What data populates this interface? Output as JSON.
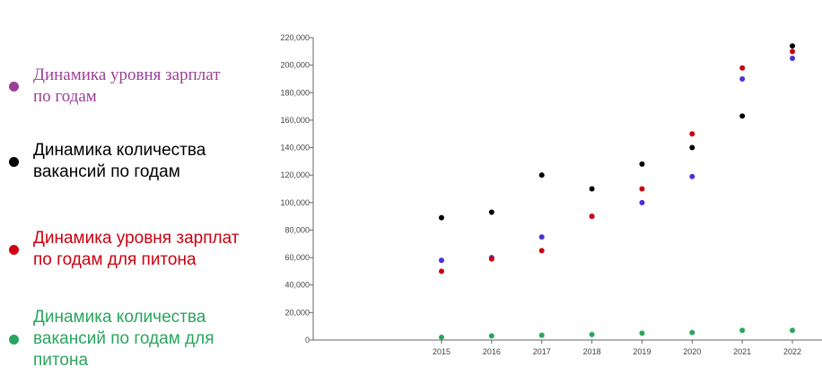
{
  "legend": [
    {
      "label": "Динамика уровня зарплат\nпо годам",
      "color": "#9b3f96",
      "font": "serif"
    },
    {
      "label": "Динамика количества\nвакансий по годам",
      "color": "#000000",
      "font": "sans"
    },
    {
      "label": "Динамика уровня зарплат\nпо годам для питона",
      "color": "#cc0010",
      "font": "sans"
    },
    {
      "label": "Динамика количества\nвакансий по годам для\nпитона",
      "color": "#2aa55d",
      "font": "sans"
    }
  ],
  "chart_data": {
    "type": "scatter",
    "title": "",
    "xlabel": "",
    "ylabel": "",
    "categories": [
      "2015",
      "2016",
      "2017",
      "2018",
      "2019",
      "2020",
      "2021",
      "2022"
    ],
    "ylim": [
      0,
      220000
    ],
    "yticks": [
      "0",
      "20,000",
      "40,000",
      "60,000",
      "80,000",
      "100,000",
      "120,000",
      "140,000",
      "160,000",
      "180,000",
      "200,000",
      "220,000"
    ],
    "grid": false,
    "series": [
      {
        "name": "Динамика количества вакансий по годам",
        "color": "#000000",
        "values": [
          89000,
          93000,
          120000,
          110000,
          128000,
          140000,
          163000,
          214000
        ]
      },
      {
        "color": "#4a32d6",
        "values": [
          58000,
          60000,
          75000,
          90000,
          100000,
          119000,
          190000,
          205000
        ]
      },
      {
        "name": "Динамика уровня зарплат по годам для питона",
        "color": "#cc0010",
        "values": [
          50000,
          59000,
          65000,
          90000,
          110000,
          150000,
          198000,
          210000
        ]
      },
      {
        "name": "Динамика количества вакансий по годам для питона",
        "color": "#2aa55d",
        "values": [
          2000,
          3000,
          3500,
          4000,
          5000,
          5500,
          7000,
          7000
        ]
      }
    ]
  }
}
